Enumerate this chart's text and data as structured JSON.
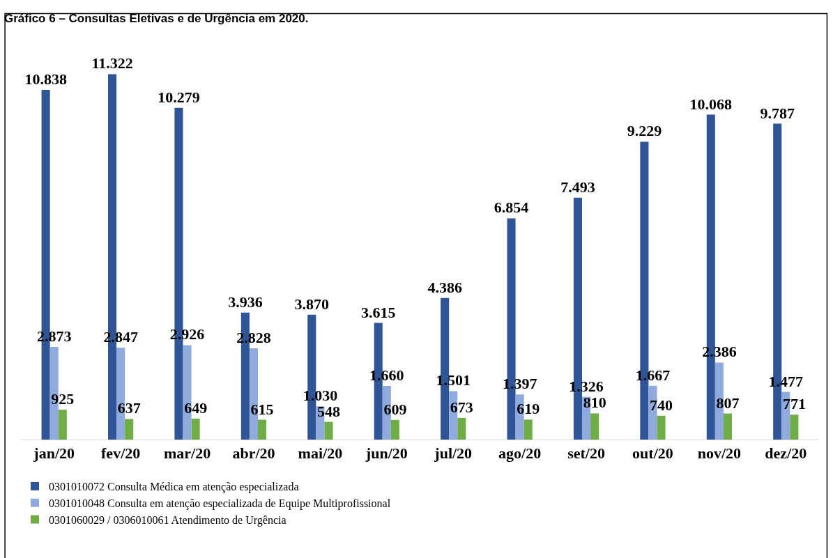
{
  "chart_data": {
    "type": "bar",
    "title": "Gráfico 6 – Consultas Eletivas e de Urgência em 2020.",
    "categories": [
      "jan/20",
      "fev/20",
      "mar/20",
      "abr/20",
      "mai/20",
      "jun/20",
      "jul/20",
      "ago/20",
      "set/20",
      "out/20",
      "nov/20",
      "dez/20"
    ],
    "series": [
      {
        "name": "0301010072 Consulta Médica em atenção especializada",
        "color": "#2f5597",
        "values": [
          10838,
          11322,
          10279,
          3936,
          3870,
          3615,
          4386,
          6854,
          7493,
          9229,
          10068,
          9787
        ],
        "value_labels": [
          "10.838",
          "11.322",
          "10.279",
          "3.936",
          "3.870",
          "3.615",
          "4.386",
          "6.854",
          "7.493",
          "9.229",
          "10.068",
          "9.787"
        ]
      },
      {
        "name": "0301010048 Consulta em atenção especializada de Equipe Multiprofissional",
        "color": "#8faadc",
        "values": [
          2873,
          2847,
          2926,
          2828,
          1030,
          1660,
          1501,
          1397,
          1326,
          1667,
          2386,
          1477
        ],
        "value_labels": [
          "2.873",
          "2.847",
          "2.926",
          "2.828",
          "1.030",
          "1.660",
          "1.501",
          "1.397",
          "1.326",
          "1.667",
          "2.386",
          "1.477"
        ]
      },
      {
        "name": "0301060029 / 0306010061 Atendimento de Urgência",
        "color": "#70ad47",
        "values": [
          925,
          637,
          649,
          615,
          548,
          609,
          673,
          619,
          810,
          740,
          807,
          771
        ],
        "value_labels": [
          "925",
          "637",
          "649",
          "615",
          "548",
          "609",
          "673",
          "619",
          "810",
          "740",
          "807",
          "771"
        ]
      }
    ],
    "legend": "bottom"
  }
}
